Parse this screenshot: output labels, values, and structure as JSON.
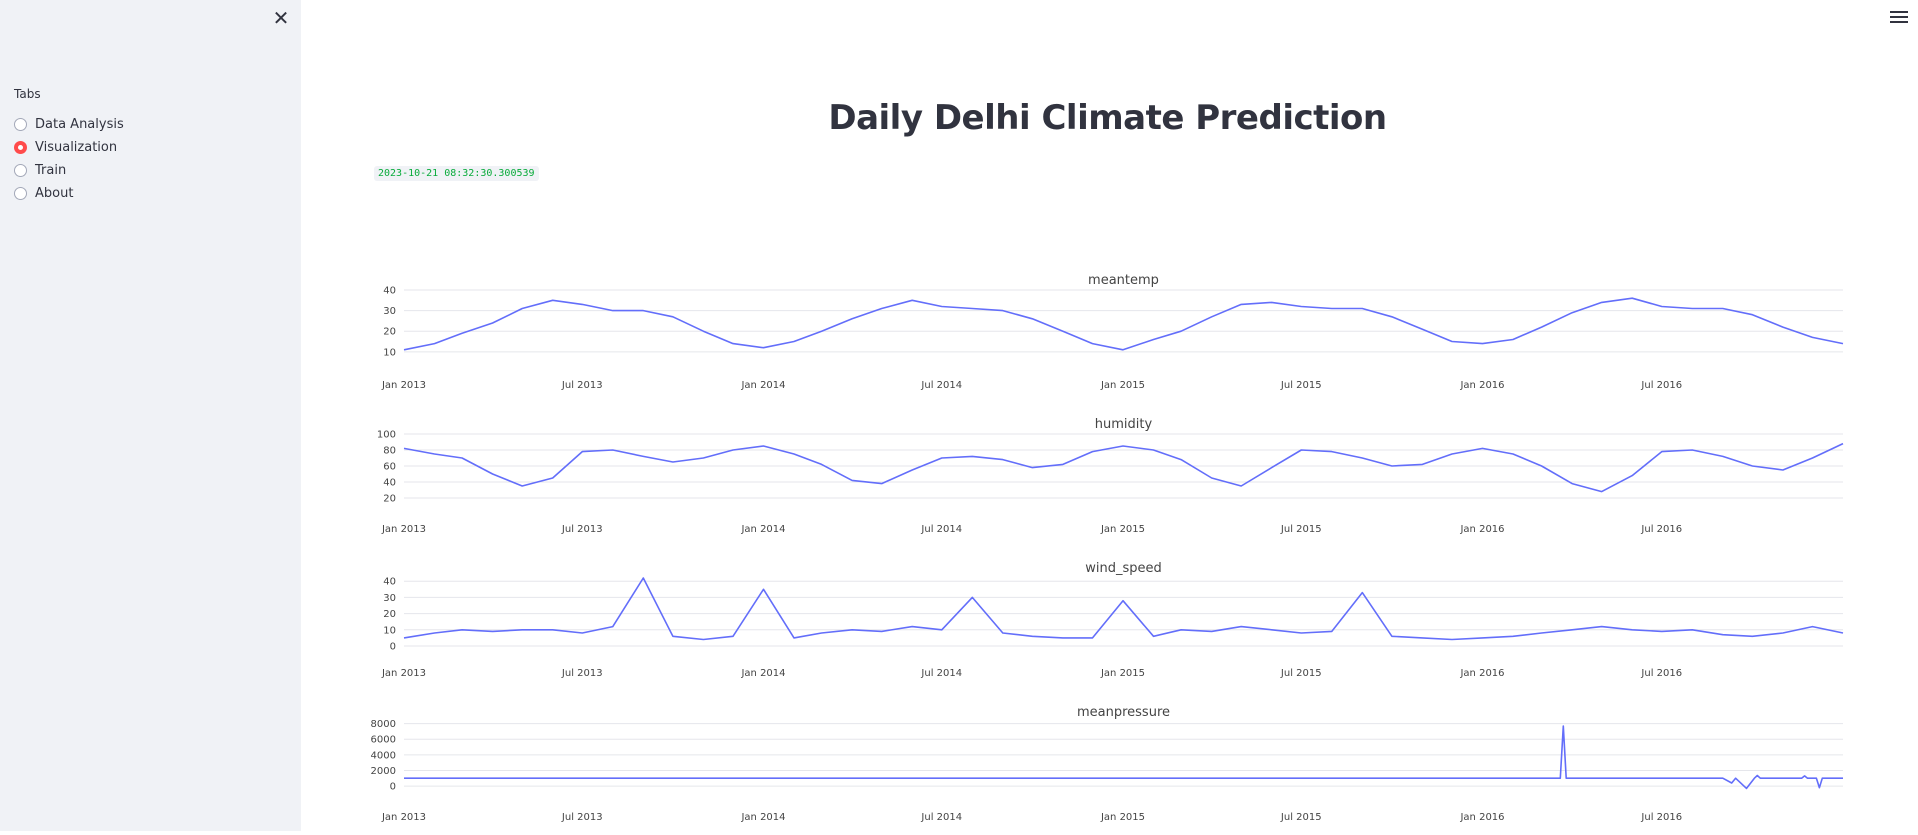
{
  "sidebar": {
    "tabs_label": "Tabs",
    "options": [
      {
        "label": "Data Analysis",
        "selected": false
      },
      {
        "label": "Visualization",
        "selected": true
      },
      {
        "label": "Train",
        "selected": false
      },
      {
        "label": "About",
        "selected": false
      }
    ],
    "close_icon": "close-icon"
  },
  "header": {
    "menu_icon": "hamburger-menu-icon"
  },
  "main": {
    "title": "Daily Delhi Climate Prediction",
    "timestamp": "2023-10-21 08:32:30.300539"
  },
  "colors": {
    "accent": "#ff4b4b",
    "line": "#636efa",
    "timestamp_text": "#09ab3b",
    "sidebar_bg": "#f0f2f6"
  },
  "chart_data": [
    {
      "type": "line",
      "title": "meantemp",
      "x_range": [
        "2013-01-01",
        "2017-01-01"
      ],
      "x_ticks": [
        "Jan 2013",
        "Jul 2013",
        "Jan 2014",
        "Jul 2014",
        "Jan 2015",
        "Jul 2015",
        "Jan 2016",
        "Jul 2016"
      ],
      "ylim": [
        7,
        40
      ],
      "y_ticks": [
        10,
        20,
        30,
        40
      ],
      "x": [
        "2013-01-01",
        "2013-02-01",
        "2013-03-01",
        "2013-04-01",
        "2013-05-01",
        "2013-06-01",
        "2013-07-01",
        "2013-08-01",
        "2013-09-01",
        "2013-10-01",
        "2013-11-01",
        "2013-12-01",
        "2014-01-01",
        "2014-02-01",
        "2014-03-01",
        "2014-04-01",
        "2014-05-01",
        "2014-06-01",
        "2014-07-01",
        "2014-08-01",
        "2014-09-01",
        "2014-10-01",
        "2014-11-01",
        "2014-12-01",
        "2015-01-01",
        "2015-02-01",
        "2015-03-01",
        "2015-04-01",
        "2015-05-01",
        "2015-06-01",
        "2015-07-01",
        "2015-08-01",
        "2015-09-01",
        "2015-10-01",
        "2015-11-01",
        "2015-12-01",
        "2016-01-01",
        "2016-02-01",
        "2016-03-01",
        "2016-04-01",
        "2016-05-01",
        "2016-06-01",
        "2016-07-01",
        "2016-08-01",
        "2016-09-01",
        "2016-10-01",
        "2016-11-01",
        "2016-12-01",
        "2017-01-01"
      ],
      "values": [
        11,
        14,
        19,
        24,
        31,
        35,
        33,
        30,
        30,
        27,
        20,
        14,
        12,
        15,
        20,
        26,
        31,
        35,
        32,
        31,
        30,
        26,
        20,
        14,
        11,
        16,
        20,
        27,
        33,
        34,
        32,
        31,
        31,
        27,
        21,
        15,
        14,
        16,
        22,
        29,
        34,
        36,
        32,
        31,
        31,
        28,
        22,
        17,
        14
      ]
    },
    {
      "type": "line",
      "title": "humidity",
      "x_range": [
        "2013-01-01",
        "2017-01-01"
      ],
      "x_ticks": [
        "Jan 2013",
        "Jul 2013",
        "Jan 2014",
        "Jul 2014",
        "Jan 2015",
        "Jul 2015",
        "Jan 2016",
        "Jul 2016"
      ],
      "ylim": [
        15,
        100
      ],
      "y_ticks": [
        20,
        40,
        60,
        80,
        100
      ],
      "x": [
        "2013-01-01",
        "2013-02-01",
        "2013-03-01",
        "2013-04-01",
        "2013-05-01",
        "2013-06-01",
        "2013-07-01",
        "2013-08-01",
        "2013-09-01",
        "2013-10-01",
        "2013-11-01",
        "2013-12-01",
        "2014-01-01",
        "2014-02-01",
        "2014-03-01",
        "2014-04-01",
        "2014-05-01",
        "2014-06-01",
        "2014-07-01",
        "2014-08-01",
        "2014-09-01",
        "2014-10-01",
        "2014-11-01",
        "2014-12-01",
        "2015-01-01",
        "2015-02-01",
        "2015-03-01",
        "2015-04-01",
        "2015-05-01",
        "2015-06-01",
        "2015-07-01",
        "2015-08-01",
        "2015-09-01",
        "2015-10-01",
        "2015-11-01",
        "2015-12-01",
        "2016-01-01",
        "2016-02-01",
        "2016-03-01",
        "2016-04-01",
        "2016-05-01",
        "2016-06-01",
        "2016-07-01",
        "2016-08-01",
        "2016-09-01",
        "2016-10-01",
        "2016-11-01",
        "2016-12-01",
        "2017-01-01"
      ],
      "values": [
        82,
        75,
        70,
        50,
        35,
        45,
        78,
        80,
        72,
        65,
        70,
        80,
        85,
        75,
        62,
        42,
        38,
        55,
        70,
        72,
        68,
        58,
        62,
        78,
        85,
        80,
        68,
        45,
        35,
        58,
        80,
        78,
        70,
        60,
        62,
        75,
        82,
        75,
        60,
        38,
        28,
        48,
        78,
        80,
        72,
        60,
        55,
        70,
        88
      ]
    },
    {
      "type": "line",
      "title": "wind_speed",
      "x_range": [
        "2013-01-01",
        "2017-01-01"
      ],
      "x_ticks": [
        "Jan 2013",
        "Jul 2013",
        "Jan 2014",
        "Jul 2014",
        "Jan 2015",
        "Jul 2015",
        "Jan 2016",
        "Jul 2016"
      ],
      "ylim": [
        0,
        42
      ],
      "y_ticks": [
        0,
        10,
        20,
        30,
        40
      ],
      "x": [
        "2013-01-01",
        "2013-02-01",
        "2013-03-01",
        "2013-04-01",
        "2013-05-01",
        "2013-06-01",
        "2013-07-01",
        "2013-08-01",
        "2013-09-01",
        "2013-10-01",
        "2013-11-01",
        "2013-12-01",
        "2014-01-01",
        "2014-02-01",
        "2014-03-01",
        "2014-04-01",
        "2014-05-01",
        "2014-06-01",
        "2014-07-01",
        "2014-08-01",
        "2014-09-01",
        "2014-10-01",
        "2014-11-01",
        "2014-12-01",
        "2015-01-01",
        "2015-02-01",
        "2015-03-01",
        "2015-04-01",
        "2015-05-01",
        "2015-06-01",
        "2015-07-01",
        "2015-08-01",
        "2015-09-01",
        "2015-10-01",
        "2015-11-01",
        "2015-12-01",
        "2016-01-01",
        "2016-02-01",
        "2016-03-01",
        "2016-04-01",
        "2016-05-01",
        "2016-06-01",
        "2016-07-01",
        "2016-08-01",
        "2016-09-01",
        "2016-10-01",
        "2016-11-01",
        "2016-12-01",
        "2017-01-01"
      ],
      "values": [
        5,
        8,
        10,
        9,
        10,
        10,
        8,
        12,
        42,
        6,
        4,
        6,
        35,
        5,
        8,
        10,
        9,
        12,
        10,
        30,
        8,
        6,
        5,
        5,
        28,
        6,
        10,
        9,
        12,
        10,
        8,
        9,
        33,
        6,
        5,
        4,
        5,
        6,
        8,
        10,
        12,
        10,
        9,
        10,
        7,
        6,
        8,
        12,
        8
      ]
    },
    {
      "type": "line",
      "title": "meanpressure",
      "x_range": [
        "2013-01-01",
        "2017-01-01"
      ],
      "x_ticks": [
        "Jan 2013",
        "Jul 2013",
        "Jan 2014",
        "Jul 2014",
        "Jan 2015",
        "Jul 2015",
        "Jan 2016",
        "Jul 2016"
      ],
      "ylim": [
        -500,
        8200
      ],
      "y_ticks": [
        0,
        2000,
        4000,
        6000,
        8000
      ],
      "x": [
        "2013-01-01",
        "2013-07-01",
        "2014-01-01",
        "2014-07-01",
        "2015-01-01",
        "2015-07-01",
        "2016-01-01",
        "2016-03-20",
        "2016-03-23",
        "2016-03-26",
        "2016-03-29",
        "2016-07-01",
        "2016-09-01",
        "2016-09-10",
        "2016-09-14",
        "2016-09-25",
        "2016-10-03",
        "2016-10-06",
        "2016-10-09",
        "2016-11-20",
        "2016-11-23",
        "2016-11-26",
        "2016-12-05",
        "2016-12-08",
        "2016-12-11",
        "2017-01-01"
      ],
      "values": [
        1015,
        1015,
        1015,
        1015,
        1015,
        1015,
        1015,
        1015,
        7680,
        1015,
        1015,
        1015,
        1015,
        400,
        1015,
        -300,
        1015,
        1350,
        1015,
        1015,
        1300,
        1015,
        1015,
        -200,
        1015,
        1015
      ]
    }
  ]
}
